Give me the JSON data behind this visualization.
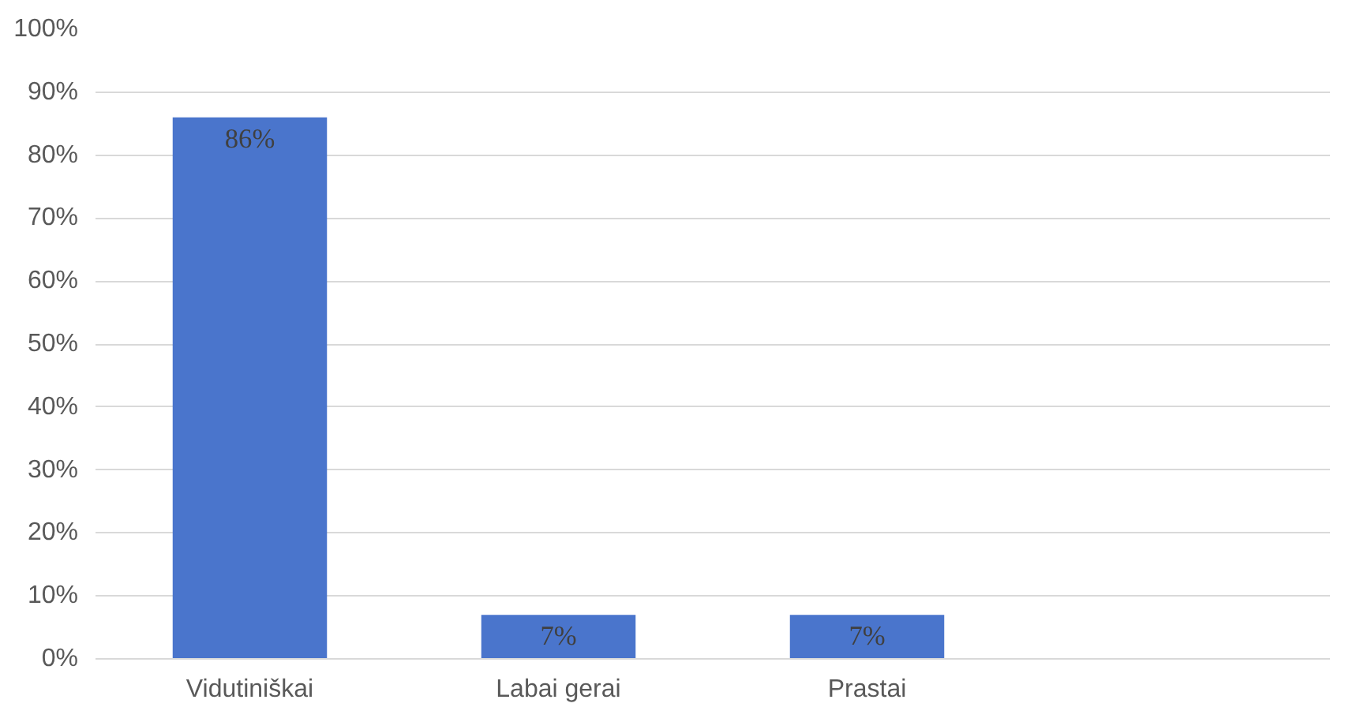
{
  "chart_data": {
    "type": "bar",
    "categories": [
      "Vidutiniškai",
      "Labai gerai",
      "Prastai",
      null
    ],
    "values": [
      86,
      7,
      7,
      null
    ],
    "value_labels": [
      "86%",
      "7%",
      "7%",
      null
    ],
    "color": "#4a75cc",
    "ylim": [
      0,
      100
    ],
    "yticks": [
      {
        "value": 0,
        "label": "0%"
      },
      {
        "value": 10,
        "label": "10%"
      },
      {
        "value": 20,
        "label": "20%"
      },
      {
        "value": 30,
        "label": "30%"
      },
      {
        "value": 40,
        "label": "40%"
      },
      {
        "value": 50,
        "label": "50%"
      },
      {
        "value": 60,
        "label": "60%"
      },
      {
        "value": 70,
        "label": "70%"
      },
      {
        "value": 80,
        "label": "80%"
      },
      {
        "value": 90,
        "label": "90%"
      },
      {
        "value": 100,
        "label": "100%"
      }
    ],
    "grid": "y"
  }
}
